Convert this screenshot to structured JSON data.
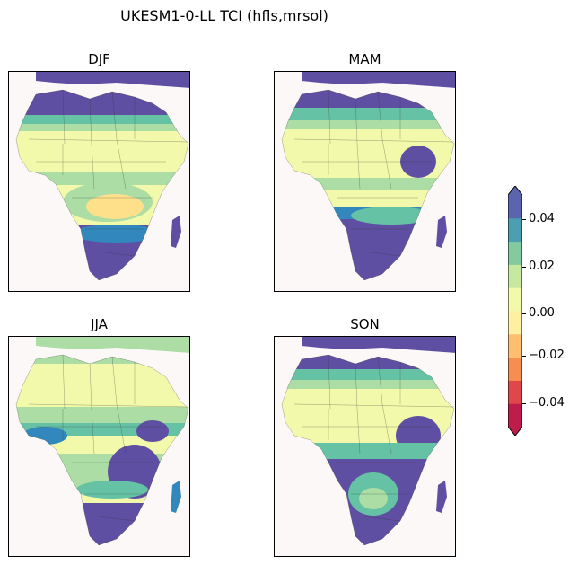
{
  "figure": {
    "title": "UKESM1-0-LL TCI (hfls,mrsol)"
  },
  "panels": [
    {
      "label": "DJF"
    },
    {
      "label": "MAM"
    },
    {
      "label": "JJA"
    },
    {
      "label": "SON"
    }
  ],
  "colorbar": {
    "ticks": [
      "0.04",
      "0.02",
      "0.00",
      "−0.02",
      "−0.04"
    ],
    "levels": [
      -0.05,
      -0.04,
      -0.03,
      -0.02,
      -0.01,
      0.0,
      0.01,
      0.02,
      0.03,
      0.04,
      0.05
    ],
    "colors": [
      "#be1d4b",
      "#e0474a",
      "#f88d52",
      "#fdbe6f",
      "#fef0a0",
      "#f2f9a8",
      "#c7e8a0",
      "#84ca9f",
      "#4aa0b2",
      "#5a64af"
    ],
    "extend": "both"
  },
  "colors": {
    "ocean": "#fcf8f8",
    "land_neutral": "#f3f9aa",
    "strong_positive": "#5e4fa2",
    "positive": "#3288bd",
    "mid_positive": "#66c2a5",
    "weak_positive": "#abdda4",
    "negative": "#fdae61"
  }
}
